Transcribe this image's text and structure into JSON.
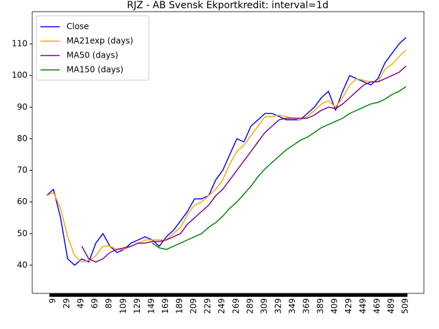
{
  "chart_data": {
    "type": "line",
    "title": "RJZ - AB Svensk Ekportkredit: interval=1d",
    "x": [
      0,
      10,
      20,
      30,
      40,
      50,
      60,
      70,
      80,
      90,
      100,
      110,
      120,
      130,
      140,
      150,
      160,
      170,
      180,
      190,
      200,
      210,
      220,
      230,
      240,
      250,
      260,
      270,
      280,
      290,
      300,
      310,
      320,
      330,
      340,
      350,
      360,
      370,
      380,
      390,
      400,
      410,
      420,
      430,
      440,
      450,
      460,
      470,
      480,
      490,
      500,
      510
    ],
    "series": [
      {
        "name": "Close",
        "color": "#0000ff",
        "values": [
          62,
          64,
          55,
          42,
          40,
          42,
          41,
          47,
          50,
          46,
          44,
          45,
          47,
          48,
          49,
          48,
          46,
          49,
          51,
          54,
          57,
          61,
          61,
          62,
          67,
          70,
          75,
          80,
          79,
          84,
          86,
          88,
          88,
          87,
          86,
          86,
          86,
          88,
          90,
          93,
          95,
          89,
          95,
          100,
          99,
          98,
          97,
          99,
          104,
          107,
          110,
          112
        ]
      },
      {
        "name": "MA21exp (days)",
        "color": "#ffa500",
        "values": [
          62,
          63,
          58,
          49,
          43,
          41,
          41.5,
          43,
          46,
          46,
          45,
          45,
          46,
          47,
          48,
          48,
          48,
          48,
          50,
          52,
          56,
          59,
          60,
          62,
          64,
          67,
          72,
          76,
          78,
          81,
          84,
          87,
          87,
          87.5,
          87,
          86.5,
          86,
          87,
          89,
          91,
          92,
          90,
          93,
          97,
          99,
          98.5,
          98,
          98,
          102,
          103.5,
          106,
          108
        ]
      },
      {
        "name": "MA50 (days)",
        "color": "#800080",
        "values": [
          null,
          null,
          null,
          null,
          null,
          46,
          42,
          41,
          42,
          44,
          45,
          45.5,
          46,
          47,
          47,
          47.5,
          47.5,
          48,
          49,
          50,
          53,
          55,
          57,
          59,
          62,
          64,
          67,
          70,
          73,
          76,
          79,
          82,
          84,
          86,
          86.5,
          86.5,
          86.5,
          86.5,
          87.5,
          89,
          90,
          89.5,
          91,
          93,
          95,
          97,
          98,
          98,
          99,
          100,
          101,
          103
        ]
      },
      {
        "name": "MA150 (days)",
        "color": "#008000",
        "values": [
          null,
          null,
          null,
          null,
          null,
          null,
          null,
          null,
          null,
          null,
          null,
          null,
          null,
          null,
          null,
          47,
          45.5,
          45,
          46,
          47,
          48,
          49,
          50,
          52,
          53.5,
          55.5,
          58,
          60,
          62.5,
          65,
          68,
          70.5,
          72.5,
          74.5,
          76.5,
          78,
          79.5,
          80.5,
          82,
          83.5,
          84.5,
          85.5,
          86.5,
          88,
          89,
          90,
          91,
          91.5,
          92.5,
          94,
          95,
          96.5
        ]
      }
    ],
    "xlim": [
      -20.2,
      535.3
    ],
    "ylim": [
      31.1,
      120.2
    ],
    "xticks": [
      9,
      29,
      49,
      69,
      89,
      109,
      129,
      149,
      169,
      189,
      209,
      229,
      249,
      269,
      289,
      309,
      329,
      349,
      369,
      389,
      409,
      429,
      449,
      469,
      489,
      509
    ],
    "yticks": [
      40,
      50,
      60,
      70,
      80,
      90,
      100,
      110
    ],
    "legend": "upper left"
  }
}
